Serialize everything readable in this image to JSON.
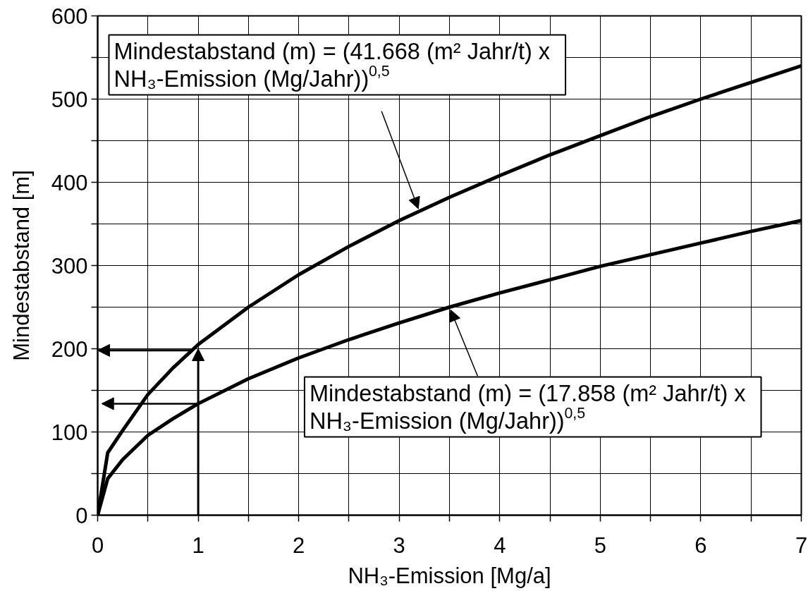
{
  "chart_data": {
    "type": "line",
    "xlabel": "NH₃-Emission [Mg/a]",
    "ylabel": "Mindestabstand [m]",
    "x": [
      0,
      0.1,
      0.25,
      0.5,
      0.75,
      1,
      1.5,
      2,
      2.5,
      3,
      3.5,
      4,
      4.5,
      5,
      5.5,
      6,
      6.5,
      7
    ],
    "series": [
      {
        "color": "#000000",
        "values": [
          0,
          75,
          102,
          145,
          177,
          205,
          250,
          289,
          323,
          354,
          382,
          408,
          433,
          456,
          479,
          500,
          520,
          540
        ]
      },
      {
        "color": "#000000",
        "values": [
          0,
          44,
          67,
          96,
          116,
          134,
          164,
          189,
          211,
          231,
          250,
          267,
          283,
          299,
          313,
          327,
          341,
          354
        ]
      }
    ],
    "xlim": [
      0,
      7
    ],
    "ylim": [
      0,
      600
    ],
    "xticks": [
      0,
      {
        "value": 0.5,
        "label": null
      },
      1,
      {
        "value": 1.5,
        "label": null
      },
      2,
      {
        "value": 2.5,
        "label": null
      },
      3,
      {
        "value": 3.5,
        "label": null
      },
      4,
      {
        "value": 4.5,
        "label": null
      },
      5,
      {
        "value": 5.5,
        "label": null
      },
      6,
      {
        "value": 6.5,
        "label": null
      },
      7
    ],
    "yticks": [
      0,
      {
        "value": 50,
        "label": null
      },
      100,
      {
        "value": 150,
        "label": null
      },
      200,
      {
        "value": 250,
        "label": null
      },
      300,
      {
        "value": 350,
        "label": null
      },
      400,
      {
        "value": 450,
        "label": null
      },
      500,
      {
        "value": 550,
        "label": null
      },
      600
    ],
    "grid": true,
    "annotations": [
      {
        "text": "Mindestabstand (m) = (41.668 (m² Jahr/t) x\nNH₃-Emission (Mg/Jahr))$^{0,5}$",
        "x": 3.2,
        "y": 365
      },
      {
        "text": "Mindestabstand (m) = (17.858 (m² Jahr/t) x\nNH₃-Emission (Mg/Jahr))$^{0,5}$",
        "x": 3.5,
        "y": 250
      }
    ]
  }
}
